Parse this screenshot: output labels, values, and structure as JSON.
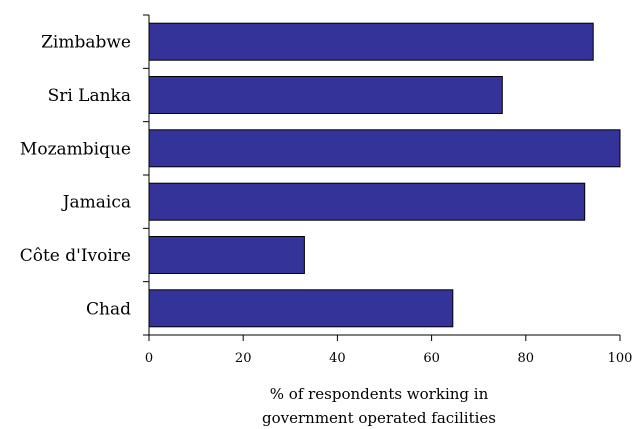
{
  "chart_data": {
    "type": "bar",
    "orientation": "horizontal",
    "categories": [
      "Zimbabwe",
      "Sri Lanka",
      "Mozambique",
      "Jamaica",
      "Côte d'Ivoire",
      "Chad"
    ],
    "values": [
      94.3,
      75,
      100,
      92.5,
      33,
      64.5
    ],
    "xlabel_lines": [
      "% of respondents working in",
      "government operated facilities"
    ],
    "xlim": [
      0,
      100
    ],
    "xticks": [
      0,
      20,
      40,
      60,
      80,
      100
    ],
    "grid": false,
    "legend": "none",
    "bar_color": "#333399",
    "bar_edge_color": "#000000"
  }
}
